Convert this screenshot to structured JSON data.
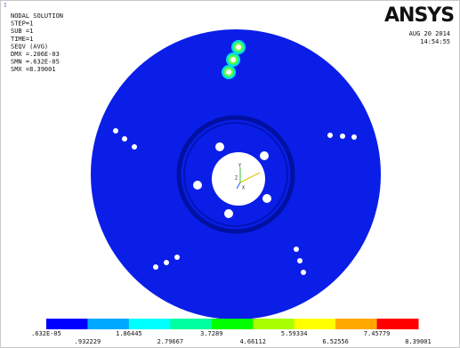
{
  "window": {
    "number": "1"
  },
  "header": {
    "lines": [
      "NODAL SOLUTION",
      "STEP=1",
      "SUB =1",
      "TIME=1",
      "SEQV     (AVG)",
      "DMX =.206E-03",
      "SMN =.632E-05",
      "SMX =8.39001"
    ]
  },
  "logo": "ANSYS",
  "timestamp": {
    "date": "AUG 20 2014",
    "time": "14:54:55"
  },
  "triad": {
    "y": "Y",
    "z": "Z",
    "x": "X"
  },
  "legend": {
    "labels": [
      ".632E-05",
      ".932229",
      "1.86445",
      "2.79667",
      "3.7289",
      "4.66112",
      "5.59334",
      "6.52556",
      "7.45779",
      "8.39001"
    ]
  }
}
